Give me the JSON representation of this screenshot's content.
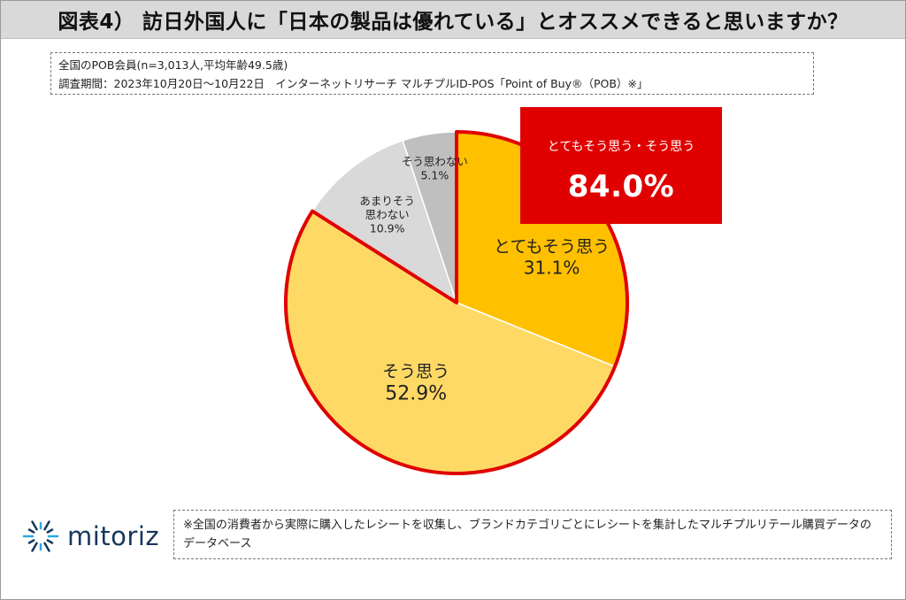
{
  "title": "図表4） 訪日外国人に「日本の製品は優れている」とオススメできると思いますか？",
  "meta": {
    "line1": "全国のPOB会員(n=3,013人,平均年齢49.5歳)",
    "line2": "調査期間：2023年10月20日～10月22日　インターネットリサーチ マルチプルID-POS「Point of Buy®（POB）※」"
  },
  "callout": {
    "label": "とてもそう思う・そう思う",
    "value": "84.0%"
  },
  "chart_data": {
    "type": "pie",
    "title": "",
    "start": "12 o'clock, clockwise",
    "highlight": [
      "とてもそう思う",
      "そう思う"
    ],
    "slices": [
      {
        "name": "とてもそう思う",
        "label_lines": [
          "とてもそう思う"
        ],
        "value": 31.1,
        "value_label": "31.1%",
        "color": "#ffc000"
      },
      {
        "name": "そう思う",
        "label_lines": [
          "そう思う"
        ],
        "value": 52.9,
        "value_label": "52.9%",
        "color": "#ffd966"
      },
      {
        "name": "あまりそう思わない",
        "label_lines": [
          "あまりそう",
          "思わない"
        ],
        "value": 10.9,
        "value_label": "10.9%",
        "color": "#d9d9d9"
      },
      {
        "name": "そう思わない",
        "label_lines": [
          "そう思わない"
        ],
        "value": 5.1,
        "value_label": "5.1%",
        "color": "#bfbfbf"
      }
    ],
    "highlight_outline_color": "#e00000"
  },
  "logo": {
    "text": "mitoriz",
    "icon": "mitoriz-burst-icon",
    "color": "#17375e",
    "accent": "#2ea7e0"
  },
  "note": "※全国の消費者から実際に購入したレシートを収集し、ブランドカテゴリごとにレシートを集計したマルチプルリテール購買データのデータベース"
}
